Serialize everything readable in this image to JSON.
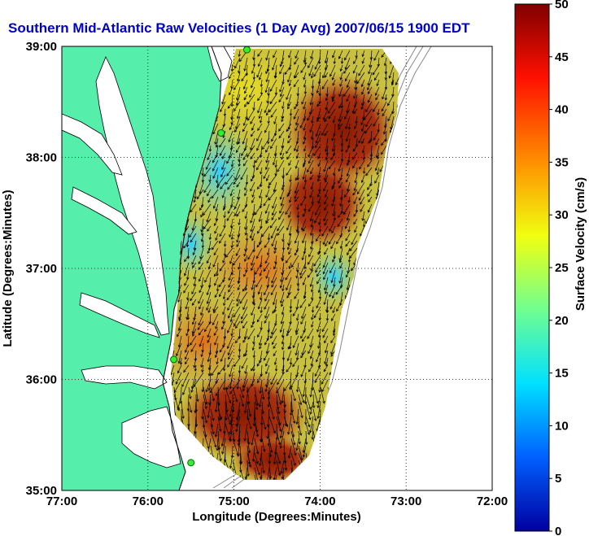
{
  "title": "Southern Mid-Atlantic Raw Velocities (1 Day Avg) 2007/06/15 1900 EDT",
  "map": {
    "xlabel": "Longitude (Degrees:Minutes)",
    "ylabel": "Latitude (Degrees:Minutes)",
    "x_ticks": [
      {
        "value": -77,
        "label": "77:00"
      },
      {
        "value": -76,
        "label": "76:00"
      },
      {
        "value": -75,
        "label": "75:00"
      },
      {
        "value": -74,
        "label": "74:00"
      },
      {
        "value": -73,
        "label": "73:00"
      },
      {
        "value": -72,
        "label": "72:00"
      }
    ],
    "y_ticks": [
      {
        "value": 35,
        "label": "35:00"
      },
      {
        "value": 36,
        "label": "36:00"
      },
      {
        "value": 37,
        "label": "37:00"
      },
      {
        "value": 38,
        "label": "38:00"
      },
      {
        "value": 39,
        "label": "39:00"
      }
    ],
    "xlim": [
      -77,
      -72
    ],
    "ylim": [
      35,
      39
    ],
    "grid": "dotted",
    "land_color": "#55eeaa",
    "water_color": "#ffffff",
    "station_markers": [
      {
        "lon": -74.85,
        "lat": 38.97
      },
      {
        "lon": -75.15,
        "lat": 38.22
      },
      {
        "lon": -75.7,
        "lat": 36.18
      },
      {
        "lon": -75.5,
        "lat": 35.25
      }
    ]
  },
  "colorbar": {
    "label": "Surface Velocity (cm/s)",
    "range": [
      0,
      50
    ],
    "ticks": [
      "0",
      "5",
      "10",
      "15",
      "20",
      "25",
      "30",
      "35",
      "40",
      "45",
      "50"
    ],
    "colormap": "jet",
    "color_stops": [
      "#0000a0",
      "#0060ff",
      "#00e0ff",
      "#70ff90",
      "#f0ff10",
      "#ff9000",
      "#ff1000",
      "#800000"
    ]
  },
  "chart_data": {
    "type": "heatmap",
    "title": "Southern Mid-Atlantic Raw Velocities (1 Day Avg) 2007/06/15 1900 EDT",
    "xlabel": "Longitude (Degrees:Minutes)",
    "ylabel": "Latitude (Degrees:Minutes)",
    "xlim": [
      -77,
      -72
    ],
    "ylim": [
      35,
      39
    ],
    "value_label": "Surface Velocity (cm/s)",
    "value_range": [
      0,
      50
    ],
    "regions": [
      {
        "name": "",
        "lon_range": [
          -75.3,
          -74.4
        ],
        "lat_range": [
          38.4,
          38.9
        ],
        "speed_cm_s": 24
      },
      {
        "name": "",
        "lon_range": [
          -75.1,
          -74.6
        ],
        "lat_range": [
          37.7,
          38.3
        ],
        "speed_cm_s": 12
      },
      {
        "name": "",
        "lon_range": [
          -74.3,
          -73.5
        ],
        "lat_range": [
          37.3,
          38.3
        ],
        "speed_cm_s": 47
      },
      {
        "name": "",
        "lon_range": [
          -75.0,
          -74.2
        ],
        "lat_range": [
          36.6,
          37.3
        ],
        "speed_cm_s": 40
      },
      {
        "name": "",
        "lon_range": [
          -74.1,
          -73.7
        ],
        "lat_range": [
          36.6,
          37.1
        ],
        "speed_cm_s": 10
      },
      {
        "name": "",
        "lon_range": [
          -75.6,
          -74.5
        ],
        "lat_range": [
          35.8,
          36.5
        ],
        "speed_cm_s": 35
      },
      {
        "name": "",
        "lon_range": [
          -75.3,
          -74.2
        ],
        "lat_range": [
          35.1,
          35.7
        ],
        "speed_cm_s": 48
      }
    ],
    "mean_flow_direction": "southward"
  }
}
